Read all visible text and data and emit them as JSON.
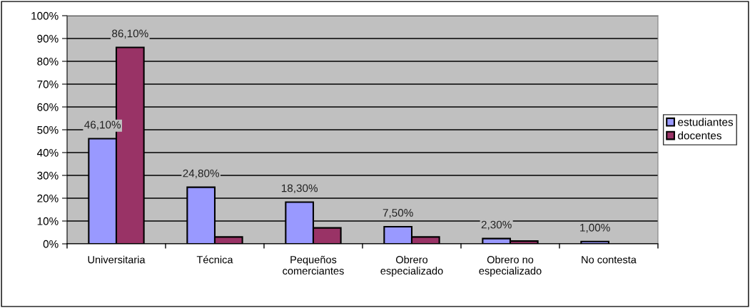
{
  "chart_data": {
    "type": "bar",
    "categories": [
      "Universitaria",
      "Técnica",
      "Pequeños\ncomerciantes",
      "Obrero\nespecializado",
      "Obrero no\nespecializado",
      "No contesta"
    ],
    "series": [
      {
        "name": "estudiantes",
        "color": "#9999ff",
        "values": [
          46.1,
          24.8,
          18.3,
          7.5,
          2.3,
          1.0
        ],
        "value_labels": [
          "46,10%",
          "24,80%",
          "18,30%",
          "7,50%",
          "2,30%",
          "1,00%"
        ]
      },
      {
        "name": "docentes",
        "color": "#993366",
        "values": [
          86.1,
          3,
          7,
          3,
          1.2,
          null
        ],
        "value_labels": [
          "86,10%",
          null,
          null,
          null,
          null,
          null
        ]
      }
    ],
    "ylim": [
      0,
      100
    ],
    "yticks": [
      {
        "value": 0,
        "label": "0%"
      },
      {
        "value": 10,
        "label": "10%"
      },
      {
        "value": 20,
        "label": "20%"
      },
      {
        "value": 30,
        "label": "30%"
      },
      {
        "value": 40,
        "label": "40%"
      },
      {
        "value": 50,
        "label": "50%"
      },
      {
        "value": 60,
        "label": "60%"
      },
      {
        "value": 70,
        "label": "70%"
      },
      {
        "value": 80,
        "label": "80%"
      },
      {
        "value": 90,
        "label": "90%"
      },
      {
        "value": 100,
        "label": "100%"
      }
    ],
    "grid": "y",
    "legend": "right"
  }
}
